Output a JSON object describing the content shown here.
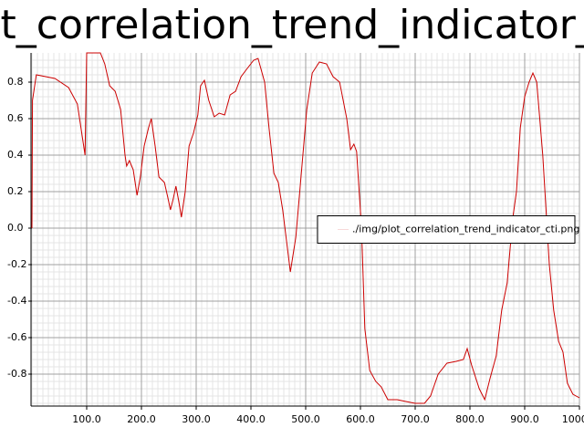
{
  "chart_data": {
    "type": "line",
    "title": "plot_correlation_trend_indicator_cti",
    "x": [
      0,
      1,
      8,
      42,
      67,
      83,
      97,
      100,
      125,
      133,
      142,
      152,
      162,
      170,
      173,
      178,
      185,
      192,
      198,
      205,
      213,
      218,
      225,
      232,
      242,
      248,
      253,
      258,
      263,
      268,
      273,
      280,
      287,
      295,
      303,
      308,
      315,
      323,
      333,
      342,
      352,
      362,
      372,
      382,
      392,
      405,
      413,
      425,
      433,
      442,
      450,
      458,
      472,
      482,
      492,
      502,
      512,
      525,
      538,
      550,
      562,
      575,
      582,
      588,
      593,
      602,
      608,
      617,
      628,
      638,
      650,
      667,
      683,
      700,
      717,
      728,
      742,
      758,
      775,
      788,
      795,
      803,
      817,
      827,
      837,
      848,
      858,
      868,
      878,
      885,
      892,
      900,
      908,
      915,
      922,
      933,
      945,
      953,
      962,
      970,
      978,
      988,
      1000
    ],
    "series": [
      {
        "name": "./img/plot_correlation_trend_indicator_cti.png",
        "color": "#cc0000",
        "values": [
          0,
          0.7,
          0.84,
          0.82,
          0.77,
          0.68,
          0.4,
          0.96,
          0.96,
          0.9,
          0.78,
          0.75,
          0.65,
          0.4,
          0.34,
          0.37,
          0.32,
          0.18,
          0.28,
          0.45,
          0.55,
          0.6,
          0.45,
          0.28,
          0.25,
          0.17,
          0.1,
          0.16,
          0.23,
          0.15,
          0.06,
          0.2,
          0.45,
          0.52,
          0.62,
          0.78,
          0.81,
          0.7,
          0.61,
          0.63,
          0.62,
          0.73,
          0.75,
          0.83,
          0.87,
          0.92,
          0.93,
          0.8,
          0.55,
          0.3,
          0.25,
          0.1,
          -0.24,
          -0.05,
          0.3,
          0.65,
          0.85,
          0.91,
          0.9,
          0.83,
          0.8,
          0.6,
          0.43,
          0.46,
          0.42,
          0.0,
          -0.55,
          -0.78,
          -0.84,
          -0.87,
          -0.94,
          -0.94,
          -0.95,
          -0.96,
          -0.96,
          -0.92,
          -0.8,
          -0.74,
          -0.73,
          -0.72,
          -0.66,
          -0.75,
          -0.88,
          -0.94,
          -0.82,
          -0.7,
          -0.45,
          -0.3,
          0.05,
          0.2,
          0.55,
          0.72,
          0.8,
          0.85,
          0.8,
          0.4,
          -0.2,
          -0.45,
          -0.62,
          -0.68,
          -0.85,
          -0.91,
          -0.93
        ]
      }
    ],
    "xlim": [
      0,
      1000
    ],
    "ylim": [
      -0.975,
      0.96
    ],
    "xticks": [
      {
        "value": 100,
        "label": "100.0"
      },
      {
        "value": 200,
        "label": "200.0"
      },
      {
        "value": 300,
        "label": "300.0"
      },
      {
        "value": 400,
        "label": "400.0"
      },
      {
        "value": 500,
        "label": "500.0"
      },
      {
        "value": 600,
        "label": "600.0"
      },
      {
        "value": 700,
        "label": "700.0"
      },
      {
        "value": 800,
        "label": "800.0"
      },
      {
        "value": 900,
        "label": "900.0"
      },
      {
        "value": 1000,
        "label": "1000.0"
      }
    ],
    "yticks": [
      -0.8,
      -0.6,
      -0.4,
      -0.2,
      {
        "value": 0,
        "label": "0.0"
      },
      0.2,
      0.4,
      0.6,
      0.8
    ],
    "grid": true,
    "legend": "center-right"
  }
}
